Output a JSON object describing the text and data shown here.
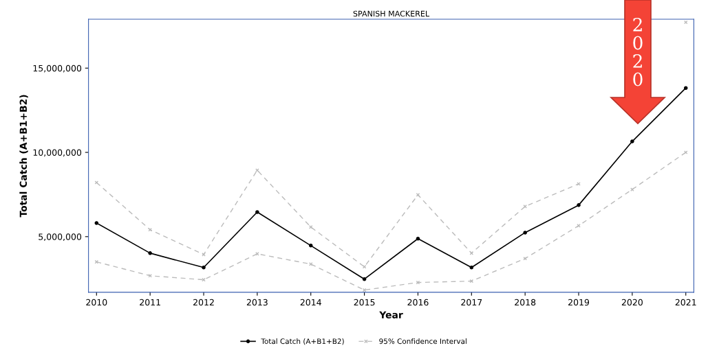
{
  "chart_data": {
    "type": "line",
    "title": "SPANISH MACKEREL",
    "xlabel": "Year",
    "ylabel": "Total Catch (A+B1+B2)",
    "categories": [
      "2010",
      "2011",
      "2012",
      "2013",
      "2014",
      "2015",
      "2016",
      "2017",
      "2018",
      "2019",
      "2020",
      "2021"
    ],
    "series": [
      {
        "name": "Total Catch (A+B1+B2)",
        "color": "#000000",
        "marker": "circle",
        "line_style": "solid",
        "values": [
          5810000,
          4020000,
          3170000,
          6460000,
          4470000,
          2480000,
          4880000,
          3170000,
          5240000,
          6870000,
          10650000,
          13820000
        ]
      },
      {
        "name": "95% Confidence Interval",
        "color": "#bbbbbb",
        "marker": "cross",
        "line_style": "dashed",
        "values": [
          8210000,
          5410000,
          3940000,
          8940000,
          5570000,
          3210000,
          7480000,
          4020000,
          6790000,
          8130000,
          null,
          17720000
        ]
      },
      {
        "color": "#bbbbbb",
        "marker": "cross",
        "line_style": "dashed",
        "values": [
          3500000,
          2680000,
          2440000,
          3980000,
          3370000,
          1830000,
          2280000,
          2360000,
          3700000,
          5650000,
          7800000,
          10000000
        ]
      }
    ],
    "ylim": [
      1700000,
      17900000
    ],
    "yticks": [
      {
        "value": 5000000,
        "label": "5,000,000"
      },
      {
        "value": 10000000,
        "label": "10,000,000"
      },
      {
        "value": 15000000,
        "label": "15,000,000"
      }
    ],
    "grid": false,
    "legend": "bottom",
    "annotations": [
      "2\n0\n2\n0"
    ]
  }
}
